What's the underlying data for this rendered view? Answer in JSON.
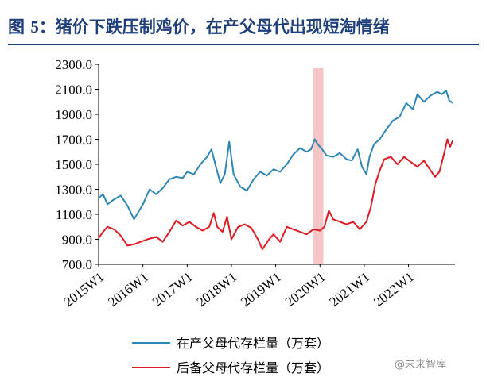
{
  "title": {
    "prefix": "图 ",
    "number": "5",
    "text": "：猪价下跌压制鸡价，在产父母代出现短淘情绪"
  },
  "watermark": "@未来智库",
  "chart_data": {
    "type": "line",
    "title": "图 5：猪价下跌压制鸡价，在产父母代出现短淘情绪",
    "ylim": [
      700,
      2300
    ],
    "yticks": [
      "2300.0",
      "2100.0",
      "1900.0",
      "1700.0",
      "1500.0",
      "1300.0",
      "1100.0",
      "900.0",
      "700.0"
    ],
    "xticks": [
      "2015W1",
      "2016W1",
      "2017W1",
      "2018W1",
      "2019W1",
      "2020W1",
      "2021W1",
      "2022W1"
    ],
    "highlight": {
      "from": "2019W45",
      "to": "2020W5",
      "color": "#f7c6c6"
    },
    "series": [
      {
        "name": "在产父母代存栏量（万套）",
        "color": "#2e86b6",
        "points": [
          [
            2015.0,
            1230
          ],
          [
            2015.1,
            1260
          ],
          [
            2015.2,
            1180
          ],
          [
            2015.35,
            1220
          ],
          [
            2015.5,
            1250
          ],
          [
            2015.65,
            1170
          ],
          [
            2015.8,
            1060
          ],
          [
            2015.9,
            1120
          ],
          [
            2016.0,
            1180
          ],
          [
            2016.15,
            1300
          ],
          [
            2016.3,
            1260
          ],
          [
            2016.45,
            1310
          ],
          [
            2016.6,
            1380
          ],
          [
            2016.75,
            1400
          ],
          [
            2016.9,
            1390
          ],
          [
            2017.0,
            1440
          ],
          [
            2017.15,
            1420
          ],
          [
            2017.3,
            1500
          ],
          [
            2017.45,
            1560
          ],
          [
            2017.55,
            1620
          ],
          [
            2017.65,
            1480
          ],
          [
            2017.75,
            1350
          ],
          [
            2017.85,
            1420
          ],
          [
            2017.95,
            1680
          ],
          [
            2018.05,
            1420
          ],
          [
            2018.2,
            1320
          ],
          [
            2018.35,
            1290
          ],
          [
            2018.5,
            1380
          ],
          [
            2018.65,
            1440
          ],
          [
            2018.8,
            1410
          ],
          [
            2018.95,
            1460
          ],
          [
            2019.1,
            1440
          ],
          [
            2019.25,
            1500
          ],
          [
            2019.4,
            1580
          ],
          [
            2019.55,
            1630
          ],
          [
            2019.7,
            1600
          ],
          [
            2019.8,
            1620
          ],
          [
            2019.88,
            1700
          ],
          [
            2019.95,
            1660
          ],
          [
            2020.05,
            1620
          ],
          [
            2020.15,
            1570
          ],
          [
            2020.3,
            1560
          ],
          [
            2020.45,
            1590
          ],
          [
            2020.6,
            1540
          ],
          [
            2020.72,
            1530
          ],
          [
            2020.85,
            1620
          ],
          [
            2020.95,
            1480
          ],
          [
            2021.05,
            1420
          ],
          [
            2021.12,
            1560
          ],
          [
            2021.22,
            1660
          ],
          [
            2021.35,
            1700
          ],
          [
            2021.5,
            1780
          ],
          [
            2021.65,
            1850
          ],
          [
            2021.8,
            1880
          ],
          [
            2021.95,
            1990
          ],
          [
            2022.1,
            1940
          ],
          [
            2022.2,
            2060
          ],
          [
            2022.35,
            2000
          ],
          [
            2022.5,
            2050
          ],
          [
            2022.65,
            2080
          ],
          [
            2022.75,
            2060
          ],
          [
            2022.85,
            2090
          ],
          [
            2022.92,
            2010
          ],
          [
            2023.0,
            1990
          ]
        ]
      },
      {
        "name": "后备父母代存栏量（万套）",
        "color": "#e11b22",
        "points": [
          [
            2015.0,
            910
          ],
          [
            2015.1,
            960
          ],
          [
            2015.2,
            1000
          ],
          [
            2015.35,
            980
          ],
          [
            2015.5,
            930
          ],
          [
            2015.65,
            850
          ],
          [
            2015.8,
            860
          ],
          [
            2015.95,
            880
          ],
          [
            2016.1,
            900
          ],
          [
            2016.3,
            920
          ],
          [
            2016.45,
            880
          ],
          [
            2016.6,
            960
          ],
          [
            2016.75,
            1050
          ],
          [
            2016.9,
            1010
          ],
          [
            2017.05,
            1040
          ],
          [
            2017.2,
            1000
          ],
          [
            2017.35,
            970
          ],
          [
            2017.5,
            1000
          ],
          [
            2017.6,
            1110
          ],
          [
            2017.68,
            1000
          ],
          [
            2017.8,
            960
          ],
          [
            2017.9,
            1080
          ],
          [
            2018.0,
            900
          ],
          [
            2018.15,
            1000
          ],
          [
            2018.3,
            1020
          ],
          [
            2018.45,
            990
          ],
          [
            2018.6,
            900
          ],
          [
            2018.7,
            820
          ],
          [
            2018.85,
            900
          ],
          [
            2018.95,
            940
          ],
          [
            2019.1,
            880
          ],
          [
            2019.25,
            1000
          ],
          [
            2019.4,
            980
          ],
          [
            2019.55,
            960
          ],
          [
            2019.7,
            940
          ],
          [
            2019.85,
            980
          ],
          [
            2020.0,
            970
          ],
          [
            2020.1,
            1000
          ],
          [
            2020.2,
            1130
          ],
          [
            2020.3,
            1060
          ],
          [
            2020.45,
            1040
          ],
          [
            2020.6,
            1020
          ],
          [
            2020.75,
            1040
          ],
          [
            2020.9,
            980
          ],
          [
            2021.05,
            1040
          ],
          [
            2021.15,
            1160
          ],
          [
            2021.25,
            1340
          ],
          [
            2021.35,
            1450
          ],
          [
            2021.45,
            1540
          ],
          [
            2021.6,
            1560
          ],
          [
            2021.75,
            1500
          ],
          [
            2021.9,
            1560
          ],
          [
            2022.05,
            1520
          ],
          [
            2022.2,
            1480
          ],
          [
            2022.35,
            1530
          ],
          [
            2022.5,
            1450
          ],
          [
            2022.6,
            1400
          ],
          [
            2022.7,
            1440
          ],
          [
            2022.8,
            1580
          ],
          [
            2022.88,
            1700
          ],
          [
            2022.94,
            1640
          ],
          [
            2023.0,
            1690
          ]
        ]
      }
    ],
    "legend": "bottom"
  }
}
